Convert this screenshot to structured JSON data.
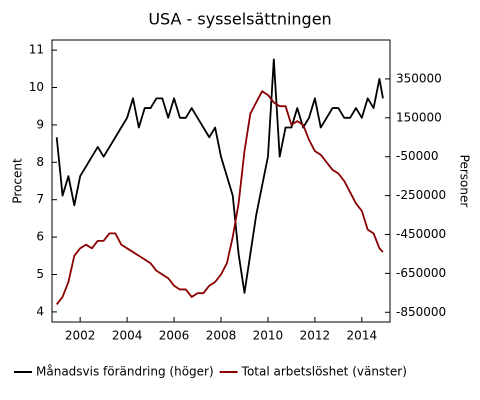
{
  "chart_data": {
    "type": "line",
    "title": "USA - sysselsättningen",
    "ylabel": "Procent",
    "y2label": "Personer",
    "x": [
      2001.0,
      2001.25,
      2001.5,
      2001.75,
      2002.0,
      2002.25,
      2002.5,
      2002.75,
      2003.0,
      2003.25,
      2003.5,
      2003.75,
      2004.0,
      2004.25,
      2004.5,
      2004.75,
      2005.0,
      2005.25,
      2005.5,
      2005.75,
      2006.0,
      2006.25,
      2006.5,
      2006.75,
      2007.0,
      2007.25,
      2007.5,
      2007.75,
      2008.0,
      2008.25,
      2008.5,
      2008.75,
      2009.0,
      2009.25,
      2009.5,
      2009.75,
      2010.0,
      2010.25,
      2010.5,
      2010.75,
      2011.0,
      2011.25,
      2011.5,
      2011.75,
      2012.0,
      2012.25,
      2012.5,
      2012.75,
      2013.0,
      2013.25,
      2013.5,
      2013.75,
      2014.0,
      2014.25,
      2014.5,
      2014.75,
      2014.9
    ],
    "series": [
      {
        "name": "Månadsvis förändring (höger)",
        "color": "#000000",
        "axis": "y2",
        "values": [
          50000,
          -250000,
          -150000,
          -300000,
          -150000,
          -100000,
          -50000,
          0,
          -50000,
          0,
          50000,
          100000,
          150000,
          250000,
          100000,
          200000,
          200000,
          250000,
          250000,
          150000,
          250000,
          150000,
          150000,
          200000,
          150000,
          100000,
          50000,
          100000,
          -50000,
          -150000,
          -250000,
          -550000,
          -750000,
          -550000,
          -350000,
          -200000,
          -50000,
          450000,
          -50000,
          100000,
          100000,
          200000,
          100000,
          150000,
          250000,
          100000,
          150000,
          200000,
          200000,
          150000,
          150000,
          200000,
          150000,
          250000,
          200000,
          350000,
          250000
        ]
      },
      {
        "name": "Total arbetslöshet (vänster)",
        "color": "#8b0000",
        "values": [
          4.2,
          4.4,
          4.8,
          5.5,
          5.7,
          5.8,
          5.7,
          5.9,
          5.9,
          6.1,
          6.1,
          5.8,
          5.7,
          5.6,
          5.5,
          5.4,
          5.3,
          5.1,
          5.0,
          4.9,
          4.7,
          4.6,
          4.6,
          4.4,
          4.5,
          4.5,
          4.7,
          4.8,
          5.0,
          5.3,
          6.0,
          6.9,
          8.3,
          9.3,
          9.6,
          9.9,
          9.8,
          9.6,
          9.5,
          9.5,
          9.0,
          9.1,
          9.0,
          8.6,
          8.3,
          8.2,
          8.0,
          7.8,
          7.7,
          7.5,
          7.2,
          6.9,
          6.7,
          6.2,
          6.1,
          5.7,
          5.6
        ]
      }
    ],
    "xlim": [
      2000.8,
      2015.2
    ],
    "xticks": [
      2002,
      2004,
      2006,
      2008,
      2010,
      2012,
      2014
    ],
    "ylim": [
      3.73,
      11.27
    ],
    "yticks": [
      4,
      5,
      6,
      7,
      8,
      9,
      10,
      11
    ],
    "y2lim": [
      -900000,
      550000
    ],
    "y2ticks": [
      350000,
      150000,
      -50000,
      -250000,
      -450000,
      -650000,
      -850000
    ]
  }
}
